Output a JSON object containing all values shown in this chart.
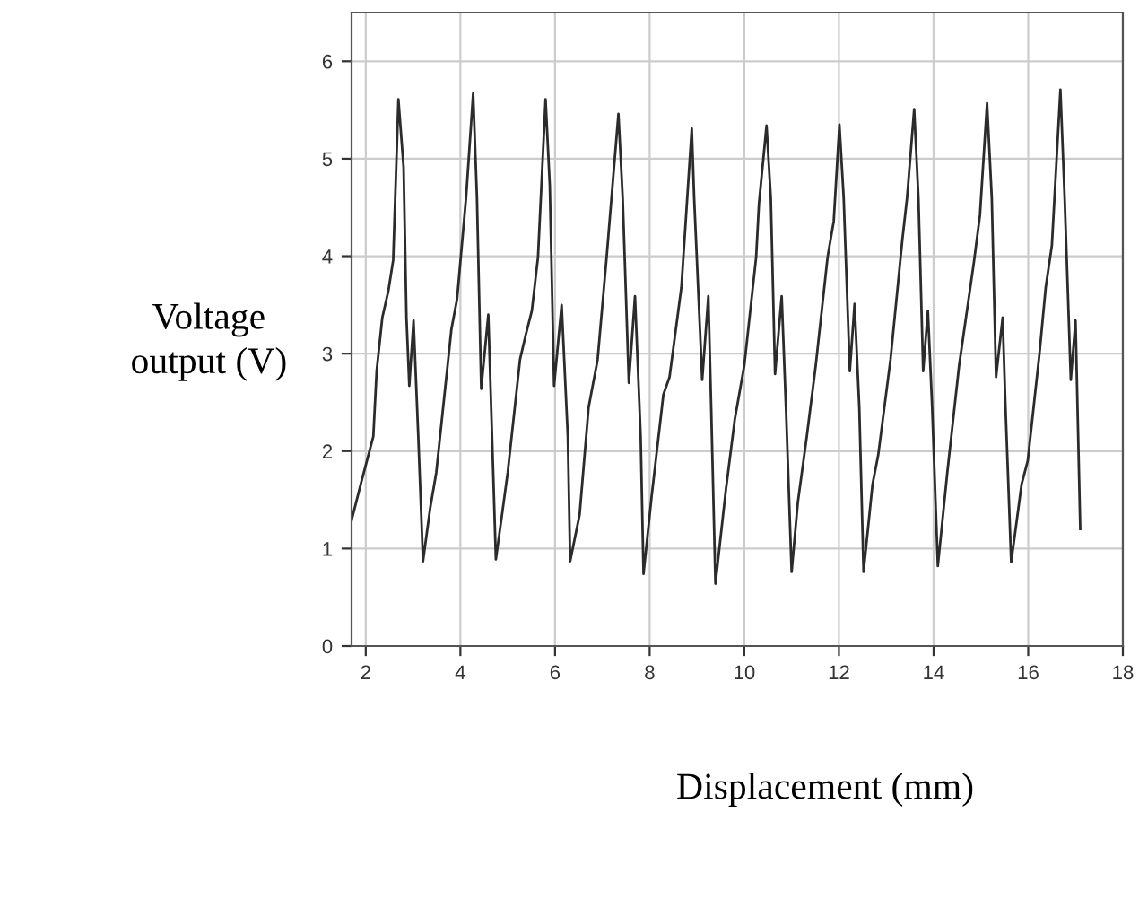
{
  "chart_data": {
    "type": "line",
    "xlabel": "Displacement (mm)",
    "ylabel": "Voltage\noutput (V)",
    "xlim": [
      1.7,
      18
    ],
    "ylim": [
      0,
      6.5
    ],
    "xticks": [
      2,
      4,
      6,
      8,
      10,
      12,
      14,
      16,
      18
    ],
    "yticks": [
      0,
      1,
      2,
      3,
      4,
      5,
      6
    ],
    "grid": true,
    "marker": "none",
    "line_style": "solid",
    "series": [
      {
        "color": "#2b2b2b",
        "x": [
          1.7,
          1.91,
          2.16,
          2.23,
          2.35,
          2.48,
          2.58,
          2.69,
          2.8,
          2.86,
          2.92,
          3.01,
          3.11,
          3.21,
          3.36,
          3.49,
          3.81,
          3.93,
          4.12,
          4.27,
          4.35,
          4.44,
          4.59,
          4.75,
          4.88,
          5.0,
          5.26,
          5.38,
          5.51,
          5.64,
          5.8,
          5.89,
          5.98,
          6.14,
          6.27,
          6.32,
          6.52,
          6.71,
          6.9,
          7.09,
          7.34,
          7.43,
          7.56,
          7.69,
          7.81,
          7.87,
          8.04,
          8.29,
          8.42,
          8.67,
          8.89,
          8.94,
          9.11,
          9.24,
          9.3,
          9.39,
          9.61,
          9.8,
          10.0,
          10.25,
          10.31,
          10.47,
          10.56,
          10.65,
          10.79,
          10.88,
          11.0,
          11.13,
          11.32,
          11.51,
          11.76,
          11.89,
          12.01,
          12.1,
          12.23,
          12.33,
          12.43,
          12.52,
          12.71,
          12.83,
          13.09,
          13.34,
          13.44,
          13.59,
          13.68,
          13.78,
          13.88,
          13.97,
          14.09,
          14.29,
          14.54,
          14.85,
          14.98,
          15.13,
          15.23,
          15.32,
          15.46,
          15.52,
          15.64,
          15.86,
          15.99,
          16.24,
          16.37,
          16.5,
          16.68,
          16.77,
          16.9,
          17.0,
          17.1
        ],
        "values": [
          1.29,
          1.69,
          2.15,
          2.82,
          3.37,
          3.65,
          3.96,
          5.61,
          4.91,
          3.37,
          2.67,
          3.34,
          2.15,
          0.87,
          1.41,
          1.78,
          3.25,
          3.56,
          4.6,
          5.67,
          4.6,
          2.64,
          3.4,
          0.89,
          1.35,
          1.78,
          2.94,
          3.19,
          3.44,
          3.99,
          5.61,
          4.72,
          2.67,
          3.5,
          2.15,
          0.87,
          1.35,
          2.45,
          2.94,
          3.99,
          5.46,
          4.6,
          2.7,
          3.59,
          2.15,
          0.74,
          1.53,
          2.58,
          2.76,
          3.68,
          5.31,
          4.6,
          2.73,
          3.59,
          2.45,
          0.64,
          1.6,
          2.33,
          2.88,
          3.99,
          4.54,
          5.34,
          4.6,
          2.79,
          3.59,
          2.45,
          0.76,
          1.47,
          2.15,
          2.88,
          3.99,
          4.36,
          5.35,
          4.6,
          2.82,
          3.51,
          2.45,
          0.76,
          1.66,
          1.96,
          2.94,
          4.17,
          4.6,
          5.51,
          4.6,
          2.82,
          3.44,
          2.45,
          0.82,
          1.78,
          2.88,
          3.93,
          4.42,
          5.57,
          4.6,
          2.76,
          3.37,
          2.45,
          0.86,
          1.66,
          1.9,
          3.01,
          3.68,
          4.11,
          5.71,
          4.6,
          2.73,
          3.34,
          1.2
        ]
      }
    ]
  }
}
